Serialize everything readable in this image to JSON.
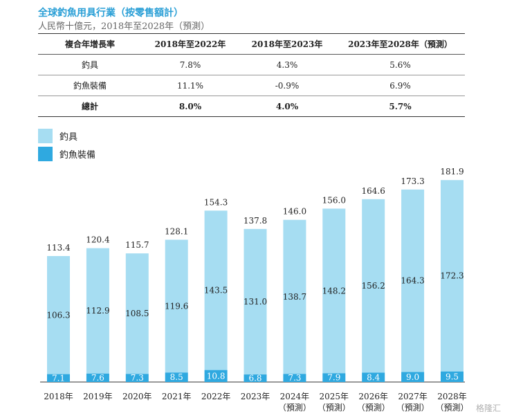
{
  "title": "全球釣魚用具行業（按零售額計）",
  "subtitle": "人民幣十億元，2018年至2028年（預測）",
  "table": {
    "headers": [
      "複合年增長率",
      "2018年至2022年",
      "2018年至2023年",
      "2023年至2028年（預測）"
    ],
    "rows": [
      {
        "label": "釣具",
        "values": [
          "7.8%",
          "4.3%",
          "5.6%"
        ]
      },
      {
        "label": "釣魚裝備",
        "values": [
          "11.1%",
          "-0.9%",
          "6.9%"
        ]
      },
      {
        "label": "總計",
        "values": [
          "8.0%",
          "4.0%",
          "5.7%"
        ]
      }
    ]
  },
  "colors": {
    "tackle": "#a6ddf2",
    "equipment": "#2fa9e0"
  },
  "watermark": "格隆汇",
  "chart_data": {
    "type": "bar",
    "stacked": true,
    "categories": [
      "2018年",
      "2019年",
      "2020年",
      "2021年",
      "2022年",
      "2023年",
      "2024年",
      "2025年",
      "2026年",
      "2027年",
      "2028年"
    ],
    "category_sublabels": [
      "",
      "",
      "",
      "",
      "",
      "",
      "（預測）",
      "（預測）",
      "（預測）",
      "（預測）",
      "（預測）"
    ],
    "series": [
      {
        "name": "釣魚裝備",
        "values": [
          7.1,
          7.6,
          7.3,
          8.5,
          10.8,
          6.8,
          7.3,
          7.9,
          8.4,
          9.0,
          9.5
        ]
      },
      {
        "name": "釣具",
        "values": [
          106.3,
          112.9,
          108.5,
          119.6,
          143.5,
          131.0,
          138.7,
          148.2,
          156.2,
          164.3,
          172.3
        ]
      }
    ],
    "totals": [
      113.4,
      120.4,
      115.7,
      128.1,
      154.3,
      137.8,
      146.0,
      156.0,
      164.6,
      173.3,
      181.9
    ],
    "legend": [
      "釣具",
      "釣魚裝備"
    ],
    "legend_position": "top-left",
    "grid": false
  }
}
